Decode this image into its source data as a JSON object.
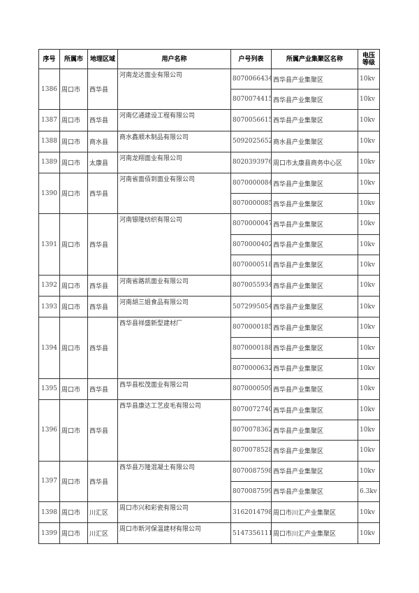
{
  "headers": [
    "序号",
    "所属市",
    "地理区域",
    "用户名称",
    "户号列表",
    "所属产业集聚区名称",
    "电压等级"
  ],
  "rows": [
    {
      "no": "1386",
      "city": "周口市",
      "area": "西华县",
      "name": "河南龙达面业有限公司",
      "accounts": [
        [
          "8070066434",
          "西华县产业集聚区",
          "10kv"
        ],
        [
          "8070074415",
          "西华县产业集聚区",
          "10kv"
        ]
      ]
    },
    {
      "no": "1387",
      "city": "周口市",
      "area": "西华县",
      "name": "河南亿通建设工程有限公司",
      "accounts": [
        [
          "8070056615",
          "西华县产业集聚区",
          "10kv"
        ]
      ]
    },
    {
      "no": "1388",
      "city": "周口市",
      "area": "商水县",
      "name": "商水鑫顺木制品有限公司",
      "accounts": [
        [
          "5092025652",
          "商水县产业集聚区",
          "10kv"
        ]
      ]
    },
    {
      "no": "1389",
      "city": "周口市",
      "area": "太康县",
      "name": "河南龙翔面业有限公司",
      "accounts": [
        [
          "8020393976",
          "周口市太康县商务中心区",
          "10kv"
        ]
      ]
    },
    {
      "no": "1390",
      "city": "周口市",
      "area": "西华县",
      "name": "河南省面佰到面业有限公司",
      "accounts": [
        [
          "8070000084",
          "西华县产业集聚区",
          "10kv"
        ],
        [
          "8070000085",
          "西华县产业集聚区",
          "10kv"
        ]
      ]
    },
    {
      "no": "1391",
      "city": "周口市",
      "area": "西华县",
      "name": "河南银隆纺织有限公司",
      "accounts": [
        [
          "8070000047",
          "西华县产业集聚区",
          "10kv"
        ],
        [
          "8070000402",
          "西华县产业集聚区",
          "10kv"
        ],
        [
          "8070000518",
          "西华县产业集聚区",
          "10kv"
        ]
      ]
    },
    {
      "no": "1392",
      "city": "周口市",
      "area": "西华县",
      "name": "河南省路凯面业有限公司",
      "accounts": [
        [
          "8070055934",
          "西华县产业集聚区",
          "10kv"
        ]
      ]
    },
    {
      "no": "1393",
      "city": "周口市",
      "area": "西华县",
      "name": "河南胡三姐食品有限公司",
      "accounts": [
        [
          "5072995054",
          "西华县产业集聚区",
          "10kv"
        ]
      ]
    },
    {
      "no": "1394",
      "city": "周口市",
      "area": "西华县",
      "name": "西华县祥盛新型建材厂",
      "accounts": [
        [
          "8070000185",
          "西华县产业集聚区",
          "10kv"
        ],
        [
          "8070000188",
          "西华县产业集聚区",
          "10kv"
        ],
        [
          "8070000632",
          "西华县产业集聚区",
          "10kv"
        ]
      ]
    },
    {
      "no": "1395",
      "city": "周口市",
      "area": "西华县",
      "name": "西华县松茂面业有限公司",
      "accounts": [
        [
          "8070000509",
          "西华县产业集聚区",
          "10kv"
        ]
      ]
    },
    {
      "no": "1396",
      "city": "周口市",
      "area": "西华县",
      "name": "西华县康达工艺皮毛有限公司",
      "accounts": [
        [
          "8070072740",
          "西华县产业集聚区",
          "10kv"
        ],
        [
          "8070078362",
          "西华县产业集聚区",
          "10kv"
        ],
        [
          "8070078528",
          "西华县产业集聚区",
          "10kv"
        ]
      ]
    },
    {
      "no": "1397",
      "city": "周口市",
      "area": "西华县",
      "name": "西华县万隆混凝土有限公司",
      "accounts": [
        [
          "8070087598",
          "西华县产业集聚区",
          "10kv"
        ],
        [
          "8070087599",
          "西华县产业集聚区",
          "6.3kv"
        ]
      ]
    },
    {
      "no": "1398",
      "city": "周口市",
      "area": "川汇区",
      "name": "周口市兴和彩瓷有限公司",
      "accounts": [
        [
          "3162014798",
          "周口市川汇产业集聚区",
          "10kv"
        ]
      ]
    },
    {
      "no": "1399",
      "city": "周口市",
      "area": "川汇区",
      "name": "周口市新河保温建材有限公司",
      "accounts": [
        [
          "5147356111",
          "周口市川汇产业集聚区",
          "10kv"
        ]
      ]
    }
  ]
}
